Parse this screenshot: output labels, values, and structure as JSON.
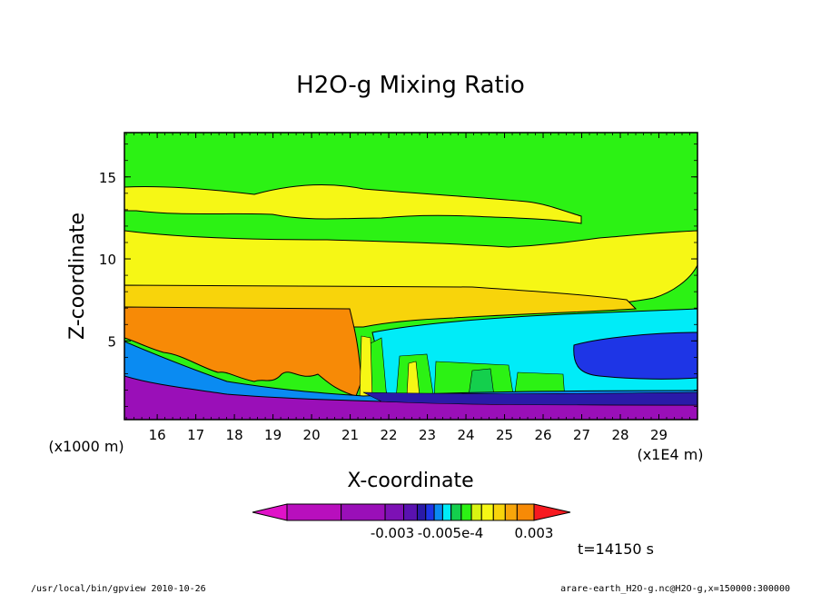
{
  "chart_data": {
    "type": "heatmap",
    "title": "H2O-g Mixing Ratio",
    "xlabel": "X-coordinate",
    "ylabel": "Z-coordinate",
    "x_unit": "(x1E4 m)",
    "y_unit": "(x1000 m)",
    "x_ticks": [
      "16",
      "17",
      "18",
      "19",
      "20",
      "21",
      "22",
      "23",
      "24",
      "25",
      "26",
      "27",
      "28",
      "29"
    ],
    "y_ticks": [
      "5",
      "10",
      "15"
    ],
    "xlim": [
      15.15,
      30.0
    ],
    "ylim": [
      0.2,
      17.7
    ],
    "colorbar_labels": [
      "-0.003",
      "-0.005e-4",
      "0.003"
    ],
    "levels": [
      {
        "name": "below-lowest",
        "color": "#e012c8"
      },
      {
        "name": "level-1",
        "color": "#b80fbd"
      },
      {
        "name": "level-2",
        "color": "#9a0fb8"
      },
      {
        "name": "level-3",
        "color": "#7d11b5"
      },
      {
        "name": "level-4",
        "color": "#5a12b0"
      },
      {
        "name": "level-5",
        "color": "#2a1aa8"
      },
      {
        "name": "level-6",
        "color": "#1e35e6"
      },
      {
        "name": "level-7",
        "color": "#0a8bf2"
      },
      {
        "name": "level-8",
        "color": "#00ecf8"
      },
      {
        "name": "level-9",
        "color": "#14cf4d"
      },
      {
        "name": "level-10",
        "color": "#2cf214"
      },
      {
        "name": "level-11",
        "color": "#d9f412"
      },
      {
        "name": "level-12",
        "color": "#f6f715"
      },
      {
        "name": "level-13",
        "color": "#f8d40b"
      },
      {
        "name": "level-14",
        "color": "#f7a50a"
      },
      {
        "name": "level-15",
        "color": "#f78a06"
      },
      {
        "name": "above-highest",
        "color": "#f71a20"
      }
    ],
    "time_label": "t=14150 s"
  },
  "footer": {
    "program": "/usr/local/bin/gpview  2010-10-26",
    "source": "arare-earth_H2O-g.nc@H2O-g,x=150000:300000"
  }
}
